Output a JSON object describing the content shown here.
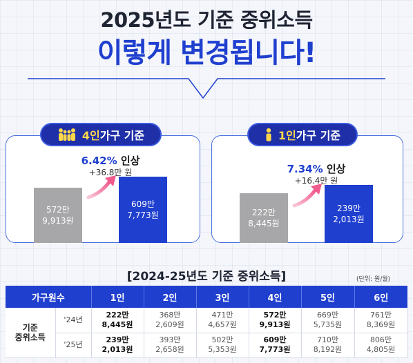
{
  "header": {
    "line1": "2025년도 기준 중위소득",
    "line2": "이렇게 변경됩니다!"
  },
  "colors": {
    "accent_blue": "#1f3fcf",
    "navy_pill": "#1f2fa8",
    "bar_grey": "#a7a7a9",
    "arrow_pink": "#f05a8c"
  },
  "cards": {
    "four_person": {
      "icon": "family-icon",
      "pill_number": "4인",
      "pill_rest": " 가구 기준",
      "rate_pct": "6.42%",
      "rate_suffix": " 인상",
      "increase": "+36.8만 원",
      "bar_2024_line1": "572만",
      "bar_2024_line2": "9,913원",
      "bar_2025_line1": "609만",
      "bar_2025_line2": "7,773원"
    },
    "one_person": {
      "icon": "person-icon",
      "pill_number": "1인",
      "pill_rest": " 가구 기준",
      "rate_pct": "7.34%",
      "rate_suffix": " 인상",
      "increase": "+16.4만 원",
      "bar_2024_line1": "222만",
      "bar_2024_line2": "8,445원",
      "bar_2025_line1": "239만",
      "bar_2025_line2": "2,013원"
    }
  },
  "table": {
    "title": "[2024-25년도 기준 중위소득]",
    "unit": "(단위: 원/월)",
    "header_first": "가구원수",
    "columns": [
      "1인",
      "2인",
      "3인",
      "4인",
      "5인",
      "6인"
    ],
    "row_label_line1": "기준",
    "row_label_line2": "중위소득",
    "rows": [
      {
        "year": "'24년",
        "cells": [
          [
            "222만",
            "8,445원"
          ],
          [
            "368만",
            "2,609원"
          ],
          [
            "471만",
            "4,657원"
          ],
          [
            "572만",
            "9,913원"
          ],
          [
            "669만",
            "5,735원"
          ],
          [
            "761만",
            "8,369원"
          ]
        ]
      },
      {
        "year": "'25년",
        "cells": [
          [
            "239만",
            "2,013원"
          ],
          [
            "393만",
            "2,658원"
          ],
          [
            "502만",
            "5,353원"
          ],
          [
            "609만",
            "7,773원"
          ],
          [
            "710만",
            "8,192원"
          ],
          [
            "806만",
            "4,805원"
          ]
        ]
      }
    ]
  }
}
